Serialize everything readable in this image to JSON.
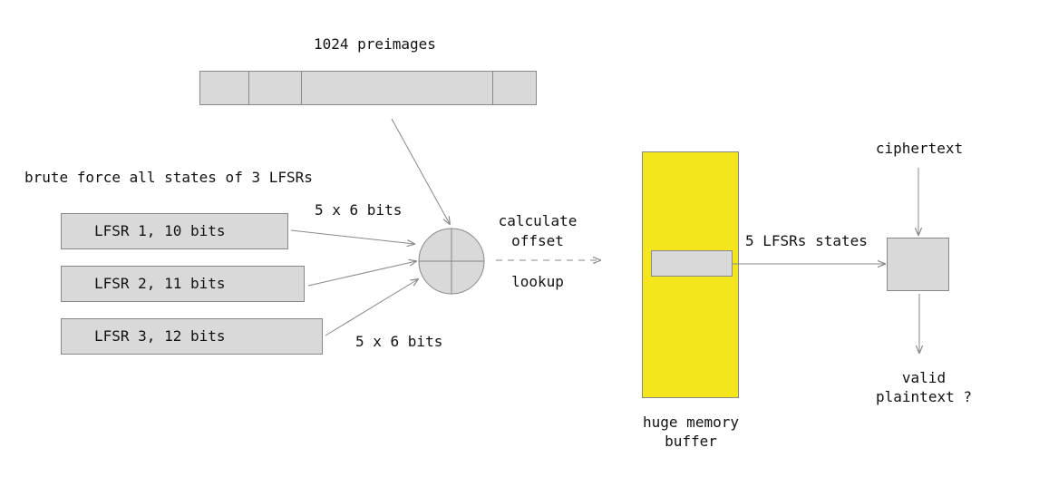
{
  "preimages": {
    "title": "1024 preimages",
    "cell_count": 4
  },
  "brute_force": {
    "label": "brute force all states of 3 LFSRs"
  },
  "lfsrs": [
    {
      "label": "LFSR 1, 10 bits"
    },
    {
      "label": "LFSR 2, 11 bits"
    },
    {
      "label": "LFSR 3, 12 bits"
    }
  ],
  "bits_top": "5 x 6 bits",
  "bits_bottom": "5 x 6 bits",
  "xor": {
    "symbol": "XOR"
  },
  "calc": {
    "line1": "calculate",
    "line2": "offset",
    "lookup": "lookup"
  },
  "memory": {
    "line1": "huge memory",
    "line2": "buffer",
    "color": "#f5e51c"
  },
  "states_label": "5 LFSRs states",
  "ciphertext": "ciphertext",
  "result": {
    "line1": "valid",
    "line2": "plaintext ?"
  }
}
